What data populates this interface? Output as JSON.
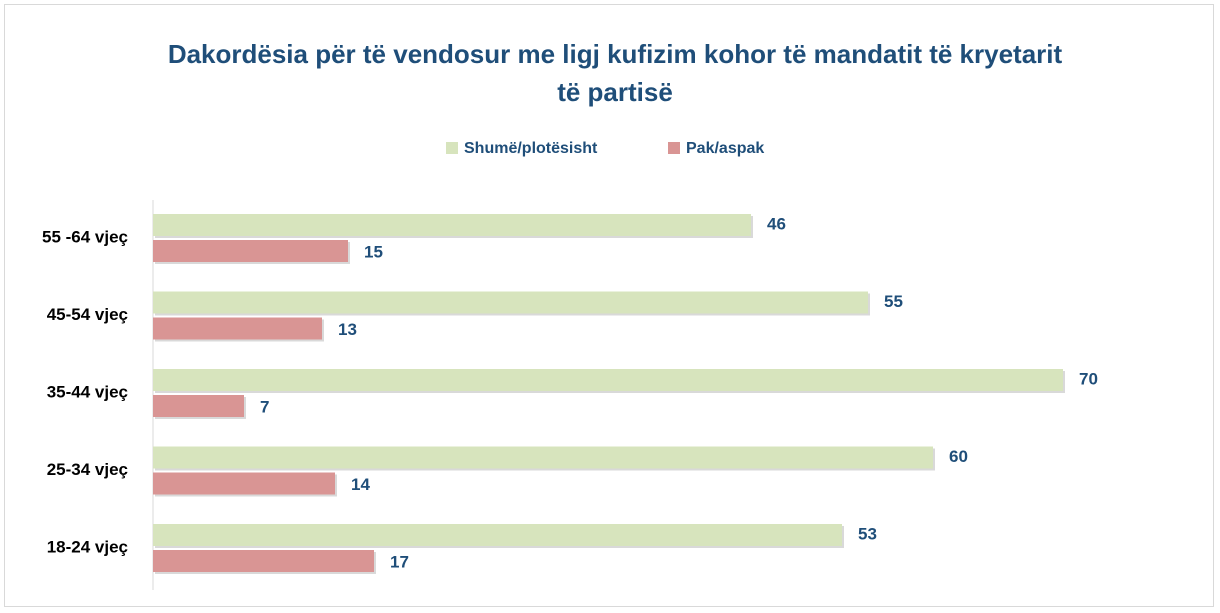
{
  "chart_data": {
    "type": "hbar",
    "title": "Dakordësia për të vendosur me ligj kufizim kohor të mandatit të kryetarit të partisë",
    "categories": [
      "55 -64 vjeç",
      "45-54 vjeç",
      "35-44 vjeç",
      "25-34 vjeç",
      "18-24 vjeç"
    ],
    "series": [
      {
        "name": "Shumë/plotësisht",
        "color": "#d7e4bd",
        "values": [
          46,
          55,
          70,
          60,
          53
        ]
      },
      {
        "name": "Pak/aspak",
        "color": "#d99594",
        "values": [
          15,
          13,
          7,
          14,
          17
        ]
      }
    ],
    "xlim": [
      0,
      70
    ],
    "legend": "top"
  }
}
